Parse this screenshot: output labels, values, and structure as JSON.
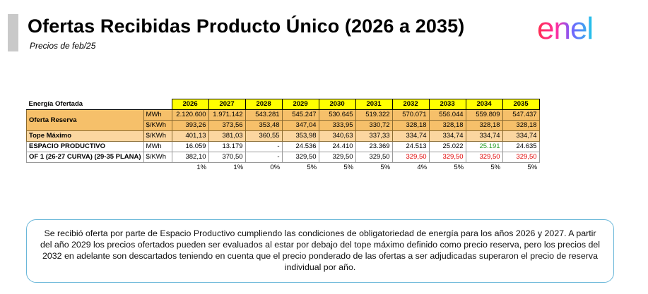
{
  "header": {
    "title": "Ofertas Recibidas Producto Único (2026 a 2035)",
    "subtitle": "Precios de feb/25",
    "logo_text": "enel"
  },
  "table": {
    "corner_label": "Energía Ofertada",
    "years": [
      "2026",
      "2027",
      "2028",
      "2029",
      "2030",
      "2031",
      "2032",
      "2033",
      "2034",
      "2035"
    ],
    "oferta_reserva": {
      "label": "Oferta Reserva",
      "unit_mwh": "MWh",
      "unit_kwh": "$/KWh",
      "mwh": [
        "2.120.600",
        "1.971.142",
        "543.281",
        "545.247",
        "530.645",
        "519.322",
        "570.071",
        "556.044",
        "559.809",
        "547.437"
      ],
      "kwh": [
        "393,26",
        "373,56",
        "353,48",
        "347,04",
        "333,95",
        "330,72",
        "328,18",
        "328,18",
        "328,18",
        "328,18"
      ]
    },
    "tope_maximo": {
      "label": "Tope Máximo",
      "unit": "$/KWh",
      "values": [
        "401,13",
        "381,03",
        "360,55",
        "353,98",
        "340,63",
        "337,33",
        "334,74",
        "334,74",
        "334,74",
        "334,74"
      ]
    },
    "espacio_productivo": {
      "label1": "ESPACIO PRODUCTIVO",
      "label2": "OF 1 (26-27 CURVA) (29-35 PLANA)",
      "unit_mwh": "MWh",
      "unit_kwh": "$/KWh",
      "mwh": [
        "16.059",
        "13.179",
        "-",
        "24.536",
        "24.410",
        "23.369",
        "24.513",
        "25.022",
        "25.191",
        "24.635"
      ],
      "kwh": [
        "382,10",
        "370,50",
        "-",
        "329,50",
        "329,50",
        "329,50",
        "329,50",
        "329,50",
        "329,50",
        "329,50"
      ]
    },
    "percentages": [
      "1%",
      "1%",
      "0%",
      "5%",
      "5%",
      "5%",
      "4%",
      "5%",
      "5%",
      "5%"
    ]
  },
  "note": {
    "text": "Se recibió oferta por parte de Espacio Productivo cumpliendo las condiciones de obligatoriedad de energía para los años 2026 y 2027. A partir del año 2029 los precios ofertados pueden ser evaluados al estar por debajo del tope máximo definido como precio reserva, pero los precios del 2032 en adelante son descartados teniendo en cuenta que el precio ponderado de las ofertas a ser adjudicadas superaron el precio de reserva individual por año."
  },
  "colors": {
    "year_header": "#ffff00",
    "oferta_fill": "#f6c06a",
    "tope_fill": "#fbd6a0",
    "red_value": "#e00000",
    "green_value": "#2ca02c",
    "note_border": "#6ab7d9"
  }
}
